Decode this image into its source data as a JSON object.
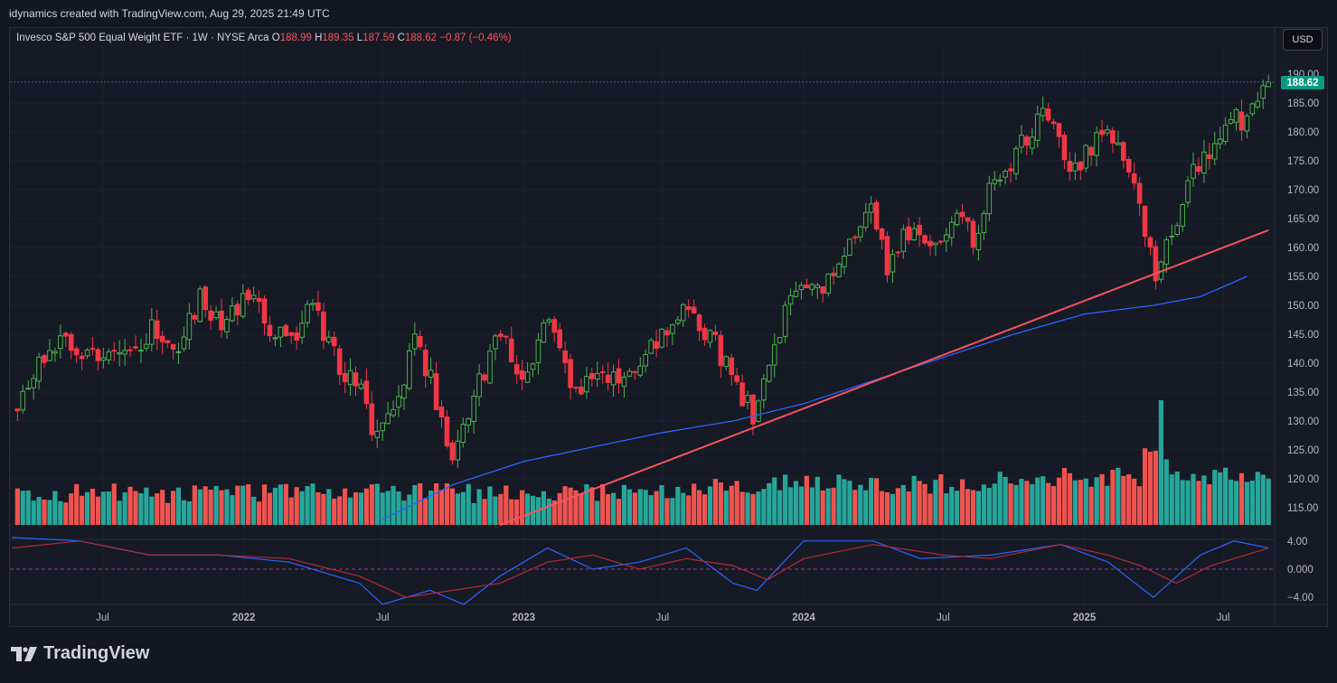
{
  "header": {
    "attribution": "idynamics created with TradingView.com, Aug 29, 2025 21:49 UTC"
  },
  "legend": {
    "symbol": "Invesco S&P 500 Equal Weight ETF · 1W · NYSE Arca",
    "open_label": "O",
    "open": "188.99",
    "high_label": "H",
    "high": "189.35",
    "low_label": "L",
    "low": "187.59",
    "close_label": "C",
    "close": "188.62",
    "change": "−0.87 (−0.46%)"
  },
  "currency_button": "USD",
  "price_tag": "188.62",
  "footer": {
    "logo_text": "TradingView"
  },
  "colors": {
    "up": "#26a69a",
    "down": "#ef5350",
    "candle_up": "#4caf50",
    "candle_down": "#f23645",
    "ma": "#2962ff",
    "trendline": "#f7525f",
    "osc_signal": "#b22833",
    "price_tag_bg": "#089981"
  },
  "chart_data": {
    "type": "candlestick",
    "interval": "1W",
    "price_axis": {
      "ticks": [
        "190.00",
        "185.00",
        "180.00",
        "175.00",
        "170.00",
        "165.00",
        "160.00",
        "155.00",
        "150.00",
        "145.00",
        "140.00",
        "135.00",
        "130.00",
        "125.00",
        "120.00",
        "115.00"
      ],
      "range": [
        112,
        192
      ]
    },
    "time_axis": {
      "ticks": [
        {
          "label": "Jul",
          "bold": false
        },
        {
          "label": "2022",
          "bold": true
        },
        {
          "label": "Jul",
          "bold": false
        },
        {
          "label": "2023",
          "bold": true
        },
        {
          "label": "Jul",
          "bold": false
        },
        {
          "label": "2024",
          "bold": true
        },
        {
          "label": "Jul",
          "bold": false
        },
        {
          "label": "2025",
          "bold": true
        },
        {
          "label": "Jul",
          "bold": false
        }
      ],
      "range": [
        "2021-03",
        "2025-08"
      ]
    },
    "oscillator_axis": {
      "ticks": [
        "4.00",
        "0.000",
        "−4.00"
      ],
      "range": [
        -5,
        5
      ]
    },
    "price_path": [
      [
        "2021-03-05",
        131
      ],
      [
        "2021-04-02",
        139
      ],
      [
        "2021-05-07",
        144
      ],
      [
        "2021-06-04",
        142
      ],
      [
        "2021-07-02",
        141
      ],
      [
        "2021-08-06",
        142
      ],
      [
        "2021-09-03",
        146
      ],
      [
        "2021-10-01",
        142
      ],
      [
        "2021-11-05",
        151
      ],
      [
        "2021-12-03",
        147
      ],
      [
        "2022-01-07",
        152
      ],
      [
        "2022-02-04",
        146
      ],
      [
        "2022-03-04",
        144
      ],
      [
        "2022-04-01",
        150
      ],
      [
        "2022-05-06",
        139
      ],
      [
        "2022-06-03",
        137
      ],
      [
        "2022-06-17",
        127
      ],
      [
        "2022-07-15",
        131
      ],
      [
        "2022-08-12",
        145
      ],
      [
        "2022-09-02",
        137
      ],
      [
        "2022-09-30",
        124
      ],
      [
        "2022-11-04",
        137
      ],
      [
        "2022-12-02",
        145
      ],
      [
        "2022-12-30",
        137
      ],
      [
        "2023-02-03",
        148
      ],
      [
        "2023-03-10",
        134
      ],
      [
        "2023-04-07",
        138
      ],
      [
        "2023-05-05",
        137
      ],
      [
        "2023-06-02",
        141
      ],
      [
        "2023-07-28",
        150
      ],
      [
        "2023-09-01",
        145
      ],
      [
        "2023-10-27",
        131
      ],
      [
        "2023-12-01",
        146
      ],
      [
        "2023-12-29",
        154
      ],
      [
        "2024-01-26",
        154
      ],
      [
        "2024-02-23",
        160
      ],
      [
        "2024-03-29",
        166
      ],
      [
        "2024-04-19",
        157
      ],
      [
        "2024-05-17",
        163
      ],
      [
        "2024-06-21",
        161
      ],
      [
        "2024-07-19",
        167
      ],
      [
        "2024-08-09",
        161
      ],
      [
        "2024-09-06",
        172
      ],
      [
        "2024-10-04",
        176
      ],
      [
        "2024-11-08",
        184
      ],
      [
        "2024-12-20",
        173
      ],
      [
        "2025-01-24",
        180
      ],
      [
        "2025-02-28",
        175
      ],
      [
        "2025-03-14",
        168
      ],
      [
        "2025-04-04",
        155
      ],
      [
        "2025-04-25",
        162
      ],
      [
        "2025-05-16",
        172
      ],
      [
        "2025-06-20",
        178
      ],
      [
        "2025-07-11",
        183
      ],
      [
        "2025-07-31",
        182
      ],
      [
        "2025-08-29",
        188.62
      ]
    ],
    "moving_average": [
      [
        "2022-07-01",
        113
      ],
      [
        "2022-10-01",
        119
      ],
      [
        "2023-01-01",
        123
      ],
      [
        "2023-04-01",
        125.5
      ],
      [
        "2023-07-01",
        128
      ],
      [
        "2023-10-01",
        130
      ],
      [
        "2024-01-01",
        133
      ],
      [
        "2024-04-01",
        137
      ],
      [
        "2024-07-01",
        141
      ],
      [
        "2024-10-01",
        145
      ],
      [
        "2025-01-01",
        148.5
      ],
      [
        "2025-04-01",
        150
      ],
      [
        "2025-06-01",
        151.5
      ],
      [
        "2025-08-01",
        155
      ]
    ],
    "trendline": [
      [
        "2022-12-01",
        112
      ],
      [
        "2025-08-29",
        163
      ]
    ],
    "volume": {
      "axis": "none",
      "peak": [
        "2025-04-11",
        "largest bar, up week"
      ]
    },
    "oscillator": {
      "macd": [
        [
          "2021-03-05",
          4.5
        ],
        [
          "2021-06-01",
          4
        ],
        [
          "2021-09-01",
          2
        ],
        [
          "2021-12-01",
          2
        ],
        [
          "2022-03-01",
          1
        ],
        [
          "2022-06-01",
          -2
        ],
        [
          "2022-07-01",
          -5
        ],
        [
          "2022-09-01",
          -3
        ],
        [
          "2022-10-15",
          -5
        ],
        [
          "2022-12-01",
          -1
        ],
        [
          "2023-02-01",
          3
        ],
        [
          "2023-04-01",
          0
        ],
        [
          "2023-06-01",
          1
        ],
        [
          "2023-08-01",
          3
        ],
        [
          "2023-10-01",
          -2
        ],
        [
          "2023-11-01",
          -3
        ],
        [
          "2024-01-01",
          4
        ],
        [
          "2024-04-01",
          4
        ],
        [
          "2024-06-01",
          1.5
        ],
        [
          "2024-09-01",
          2
        ],
        [
          "2024-12-01",
          3.5
        ],
        [
          "2025-02-01",
          1
        ],
        [
          "2025-04-01",
          -4
        ],
        [
          "2025-06-01",
          2
        ],
        [
          "2025-07-15",
          4
        ],
        [
          "2025-08-29",
          3
        ]
      ],
      "signal": [
        [
          "2021-03-05",
          3
        ],
        [
          "2021-06-01",
          4
        ],
        [
          "2021-09-01",
          2
        ],
        [
          "2021-12-01",
          2
        ],
        [
          "2022-03-01",
          1.5
        ],
        [
          "2022-06-01",
          -1
        ],
        [
          "2022-08-01",
          -4
        ],
        [
          "2022-10-01",
          -3
        ],
        [
          "2022-12-01",
          -2
        ],
        [
          "2023-02-01",
          1
        ],
        [
          "2023-04-01",
          2
        ],
        [
          "2023-06-01",
          0
        ],
        [
          "2023-08-01",
          1.5
        ],
        [
          "2023-10-01",
          0.5
        ],
        [
          "2023-11-15",
          -1.5
        ],
        [
          "2024-01-01",
          1.5
        ],
        [
          "2024-04-01",
          3.5
        ],
        [
          "2024-07-01",
          2
        ],
        [
          "2024-09-01",
          1.5
        ],
        [
          "2024-12-01",
          3.5
        ],
        [
          "2025-02-01",
          2
        ],
        [
          "2025-03-15",
          0.5
        ],
        [
          "2025-05-01",
          -2
        ],
        [
          "2025-06-15",
          0.5
        ],
        [
          "2025-08-29",
          3
        ]
      ]
    }
  }
}
